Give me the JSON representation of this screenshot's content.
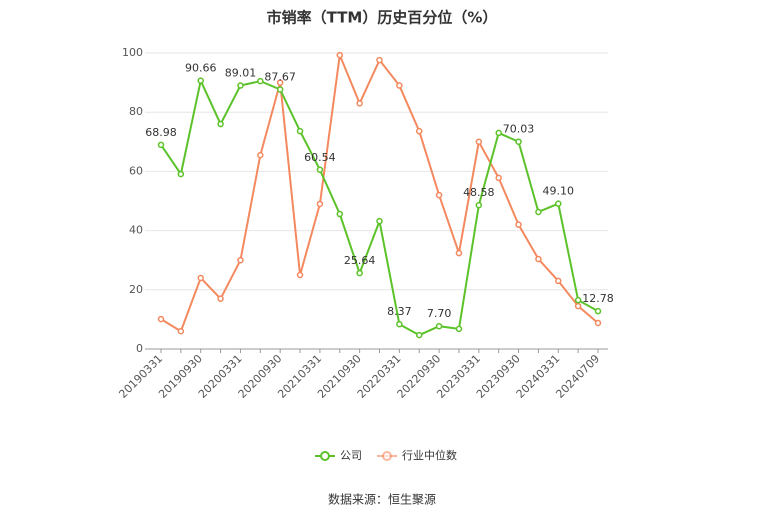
{
  "chart_data": {
    "type": "line",
    "title": "市销率（TTM）历史百分位（%）",
    "source": "数据来源：恒生聚源",
    "categories": [
      "20190331",
      null,
      "20190930",
      null,
      "20200331",
      null,
      "20200930",
      null,
      "20210331",
      null,
      "20210930",
      null,
      "20220331",
      null,
      "20220930",
      null,
      "20230331",
      null,
      "20230930",
      null,
      "20240331",
      null,
      "20240709"
    ],
    "series": [
      {
        "name": "公司",
        "color": "#5cc22a",
        "values": [
          68.98,
          59.1,
          90.66,
          76,
          89.01,
          90.5,
          87.67,
          73.6,
          60.54,
          45.6,
          25.64,
          43.2,
          8.37,
          4.7,
          7.7,
          6.8,
          48.58,
          73,
          70.03,
          46.3,
          49.1,
          16.5,
          12.78
        ],
        "value_labels": [
          "68.98",
          null,
          "90.66",
          null,
          "89.01",
          null,
          "87.67",
          null,
          "60.54",
          null,
          "25.64",
          null,
          "8.37",
          null,
          "7.70",
          null,
          "48.58",
          null,
          "70.03",
          null,
          "49.10",
          null,
          "12.78"
        ]
      },
      {
        "name": "行业中位数",
        "color": "#f4895f",
        "values": [
          10.1,
          6,
          24,
          17,
          30,
          65.5,
          90,
          25,
          49,
          99.3,
          83,
          97.6,
          89,
          73.6,
          52,
          32.4,
          70,
          57.8,
          42,
          30.4,
          23,
          14.5,
          8.8
        ]
      }
    ],
    "ylim": [
      0,
      100
    ],
    "yticks": [
      0,
      20,
      40,
      60,
      80,
      100
    ],
    "grid": true
  }
}
